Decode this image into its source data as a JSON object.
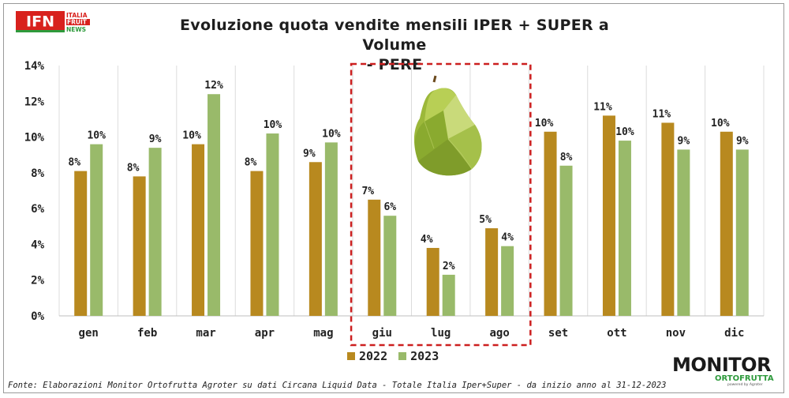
{
  "header": {
    "logo_letters": "IFN",
    "logo_lines": [
      "ITALIA",
      "FRUIT",
      "NEWS"
    ],
    "title_line1": "Evoluzione quota vendite mensili IPER + SUPER a Volume",
    "title_line2": "- PERE"
  },
  "chart_data": {
    "type": "bar",
    "categories": [
      "gen",
      "feb",
      "mar",
      "apr",
      "mag",
      "giu",
      "lug",
      "ago",
      "set",
      "ott",
      "nov",
      "dic"
    ],
    "series": [
      {
        "name": "2022",
        "values": [
          8.1,
          7.8,
          9.6,
          8.1,
          8.6,
          6.5,
          3.8,
          4.9,
          10.3,
          11.2,
          10.8,
          10.3
        ],
        "labels": [
          "8%",
          "8%",
          "10%",
          "8%",
          "9%",
          "7%",
          "4%",
          "5%",
          "10%",
          "11%",
          "11%",
          "10%"
        ],
        "color": "#b8891f"
      },
      {
        "name": "2023",
        "values": [
          9.6,
          9.4,
          12.4,
          10.2,
          9.7,
          5.6,
          2.3,
          3.9,
          8.4,
          9.8,
          9.3,
          9.3
        ],
        "labels": [
          "10%",
          "9%",
          "12%",
          "10%",
          "10%",
          "6%",
          "2%",
          "4%",
          "8%",
          "10%",
          "9%",
          "9%"
        ],
        "color": "#99ba6a"
      }
    ],
    "ylim": [
      0,
      14
    ],
    "yticks": [
      "0%",
      "2%",
      "4%",
      "6%",
      "8%",
      "10%",
      "12%",
      "14%"
    ],
    "grid": "vertical between categories",
    "highlight": {
      "categories": [
        "giu",
        "lug",
        "ago"
      ],
      "style": "red dashed box"
    },
    "legend": "bottom-center"
  },
  "footer": {
    "source": "Fonte: Elaborazioni Monitor Ortofrutta Agroter su dati Circana Liquid Data - Totale Italia Iper+Super -  da inizio anno al 31-12-2023",
    "brand_main": "MONITOR",
    "brand_sub": "ORTOFRUTTA",
    "brand_powered": "powered by Agroter"
  },
  "icons": {
    "illustration": "pear-icon"
  }
}
